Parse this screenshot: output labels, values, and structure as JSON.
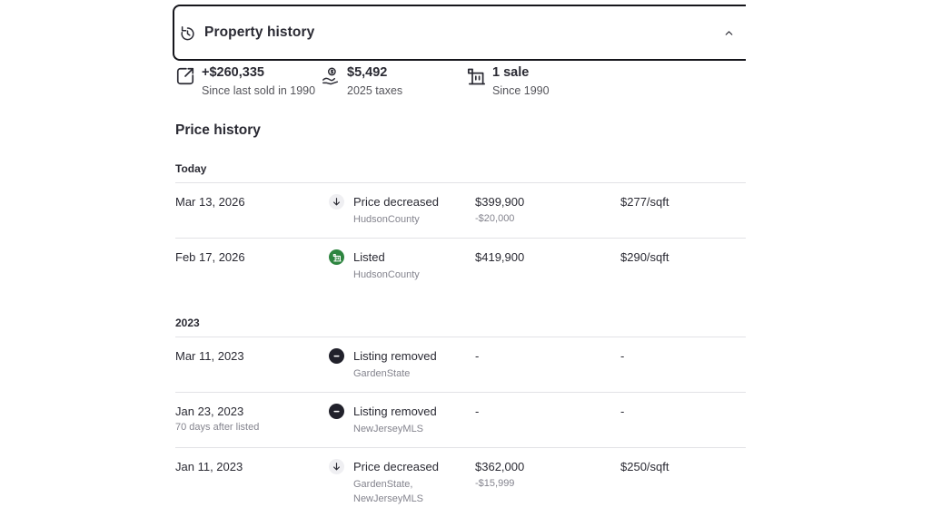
{
  "panel": {
    "title": "Property history",
    "collapse_icon": "chevron-up"
  },
  "stats": [
    {
      "icon": "appreciation-icon",
      "value": "+$260,335",
      "label": "Since last sold in 1990"
    },
    {
      "icon": "taxes-icon",
      "value": "$5,492",
      "label": "2025 taxes"
    },
    {
      "icon": "sales-count-icon",
      "value": "1 sale",
      "label": "Since 1990"
    }
  ],
  "price_history": {
    "heading": "Price history",
    "sections": [
      {
        "label": "Today",
        "rows": [
          {
            "date": "Mar 13, 2026",
            "date_note": "",
            "icon": "price-decreased-icon",
            "event": "Price decreased",
            "sources": [
              "HudsonCounty"
            ],
            "price": "$399,900",
            "price_change": "-$20,000",
            "ppsf": "$277/sqft"
          },
          {
            "date": "Feb 17, 2026",
            "date_note": "",
            "icon": "listed-icon",
            "event": "Listed",
            "sources": [
              "HudsonCounty"
            ],
            "price": "$419,900",
            "price_change": "",
            "ppsf": "$290/sqft"
          }
        ]
      },
      {
        "label": "2023",
        "rows": [
          {
            "date": "Mar 11, 2023",
            "date_note": "",
            "icon": "listing-removed-icon",
            "event": "Listing removed",
            "sources": [
              "GardenState"
            ],
            "price": "-",
            "price_change": "",
            "ppsf": "-"
          },
          {
            "date": "Jan 23, 2023",
            "date_note": "70 days after listed",
            "icon": "listing-removed-icon",
            "event": "Listing removed",
            "sources": [
              "NewJerseyMLS"
            ],
            "price": "-",
            "price_change": "",
            "ppsf": "-"
          },
          {
            "date": "Jan 11, 2023",
            "date_note": "",
            "icon": "price-decreased-icon",
            "event": "Price decreased",
            "sources": [
              "GardenState,",
              "NewJerseyMLS"
            ],
            "price": "$362,000",
            "price_change": "-$15,999",
            "ppsf": "$250/sqft"
          }
        ]
      }
    ]
  },
  "colors": {
    "text_primary": "#2a2a33",
    "text_secondary": "#84848e",
    "divider": "#e2e2e6",
    "listed_green": "#2e8540",
    "removed_black": "#21212b",
    "decreased_circle": "#efeff2",
    "panel_border": "#16161c"
  }
}
